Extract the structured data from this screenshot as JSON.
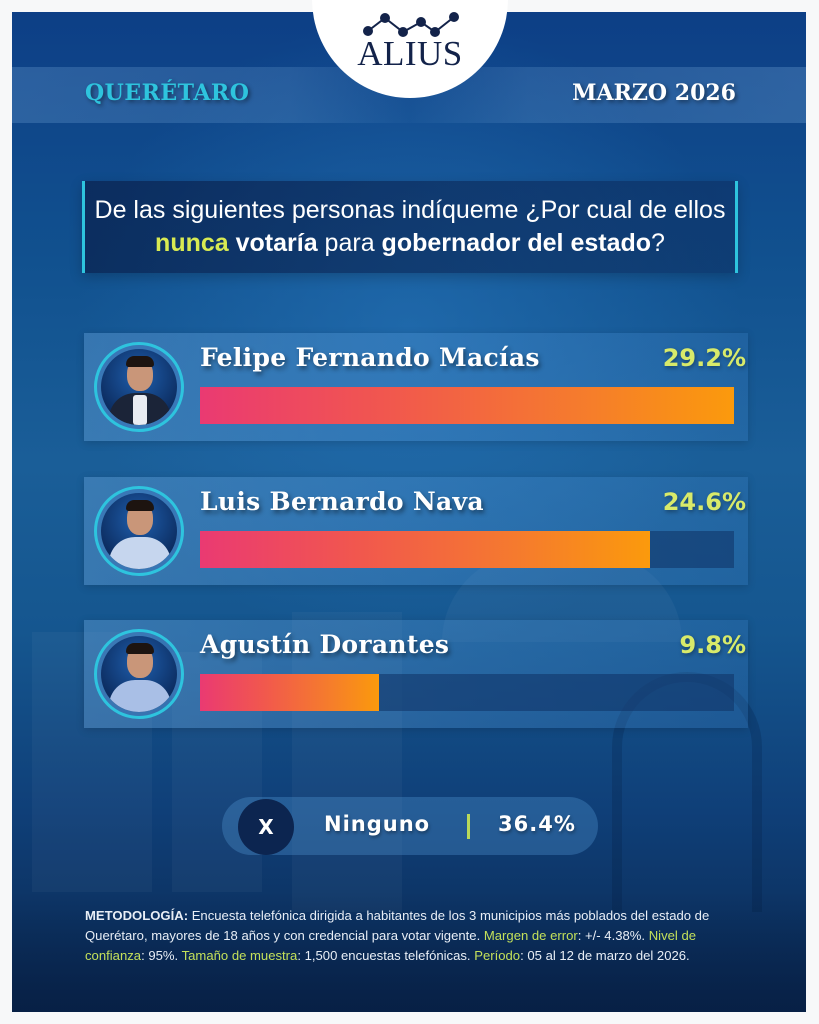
{
  "brand": {
    "logo_text": "ALIUS",
    "logo_icon": "line-chart-dots-icon"
  },
  "header": {
    "region": "QUERÉTARO",
    "date": "MARZO 2026"
  },
  "question": {
    "part1": "De las siguientes personas indíqueme  ¿Por cual de ellos ",
    "highlight": "nunca",
    "space1": " ",
    "bold1": "votaría",
    "middle": " para ",
    "bold2": "gobernador del estado",
    "end": "?"
  },
  "candidates": [
    {
      "name": "Felipe Fernando Macías",
      "percent_label": "29.2%",
      "value": 29.2,
      "jacket_color": "#1b2438"
    },
    {
      "name": "Luis Bernardo Nava",
      "percent_label": "24.6%",
      "value": 24.6,
      "jacket_color": "#c6d6ee"
    },
    {
      "name": "Agustín Dorantes",
      "percent_label": "9.8%",
      "value": 9.8,
      "jacket_color": "#a9bfe6"
    }
  ],
  "none_option": {
    "icon_label": "X",
    "label": "Ninguno",
    "percent_label": "36.4%",
    "value": 36.4
  },
  "methodology": {
    "label": "METODOLOGÍA:",
    "text1": " Encuesta telefónica dirigida a habitantes de los 3 municipios más poblados del estado de Querétaro, mayores de 18 años y con credencial para votar vigente. ",
    "margin_label": "Margen de error",
    "margin_value": ": +/- 4.38%. ",
    "confidence_label": "Nivel de confianza",
    "confidence_value": ": 95%. ",
    "sample_label": "Tamaño de muestra",
    "sample_value": ": 1,500 encuestas telefónicas. ",
    "period_label": "Período",
    "period_value": ": 05 al 12 de marzo del 2026."
  },
  "colors": {
    "accent_cyan": "#2ec4de",
    "accent_lime": "#d8ea6a",
    "bar_start": "#ea3a72",
    "bar_end": "#fb9a0c",
    "background_blue": "#11518f"
  },
  "chart_data": {
    "type": "bar",
    "orientation": "horizontal",
    "title": "De las siguientes personas indíqueme ¿Por cual de ellos nunca votaría para gobernador del estado?",
    "categories": [
      "Felipe Fernando Macías",
      "Luis Bernardo Nava",
      "Agustín Dorantes",
      "Ninguno"
    ],
    "values": [
      29.2,
      24.6,
      9.8,
      36.4
    ],
    "unit": "%",
    "xlabel": "",
    "ylabel": "",
    "scale_max_for_bars": 29.2,
    "grid": false,
    "legend": false
  }
}
